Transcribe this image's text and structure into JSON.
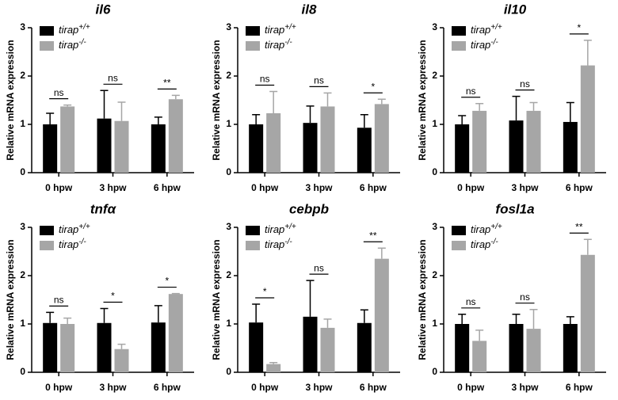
{
  "chart_data": [
    {
      "type": "bar",
      "title": "il6",
      "ylabel": "Relative mRNA expression",
      "categories": [
        "0 hpw",
        "3 hpw",
        "6 hpw"
      ],
      "ylim": [
        0,
        3
      ],
      "yticks": [
        0,
        1,
        2,
        3
      ],
      "series": [
        {
          "name": "tirap+/+",
          "color": "#000000",
          "values": [
            1.0,
            1.12,
            1.0
          ],
          "errors": [
            0.23,
            0.58,
            0.15
          ]
        },
        {
          "name": "tirap-/-",
          "color": "#a6a6a6",
          "values": [
            1.37,
            1.07,
            1.52
          ],
          "errors": [
            0.03,
            0.39,
            0.08
          ]
        }
      ],
      "annotations": [
        "ns",
        "ns",
        "**"
      ]
    },
    {
      "type": "bar",
      "title": "il8",
      "ylabel": "Relative mRNA expression",
      "categories": [
        "0 hpw",
        "3 hpw",
        "6 hpw"
      ],
      "ylim": [
        0,
        3
      ],
      "yticks": [
        0,
        1,
        2,
        3
      ],
      "series": [
        {
          "name": "tirap+/+",
          "color": "#000000",
          "values": [
            1.0,
            1.03,
            0.93
          ],
          "errors": [
            0.2,
            0.35,
            0.27
          ]
        },
        {
          "name": "tirap-/-",
          "color": "#a6a6a6",
          "values": [
            1.23,
            1.37,
            1.42
          ],
          "errors": [
            0.45,
            0.28,
            0.1
          ]
        }
      ],
      "annotations": [
        "ns",
        "ns",
        "*"
      ]
    },
    {
      "type": "bar",
      "title": "il10",
      "ylabel": "Relative mRNA expression",
      "categories": [
        "0 hpw",
        "3 hpw",
        "6 hpw"
      ],
      "ylim": [
        0,
        3
      ],
      "yticks": [
        0,
        1,
        2,
        3
      ],
      "series": [
        {
          "name": "tirap+/+",
          "color": "#000000",
          "values": [
            1.0,
            1.08,
            1.05
          ],
          "errors": [
            0.18,
            0.5,
            0.4
          ]
        },
        {
          "name": "tirap-/-",
          "color": "#a6a6a6",
          "values": [
            1.28,
            1.28,
            2.22
          ],
          "errors": [
            0.15,
            0.17,
            0.52
          ]
        }
      ],
      "annotations": [
        "ns",
        "ns",
        "*"
      ]
    },
    {
      "type": "bar",
      "title": "tnfα",
      "ylabel": "Relative mRNA expression",
      "categories": [
        "0 hpw",
        "3 hpw",
        "6 hpw"
      ],
      "ylim": [
        0,
        3
      ],
      "yticks": [
        0,
        1,
        2,
        3
      ],
      "series": [
        {
          "name": "tirap+/+",
          "color": "#000000",
          "values": [
            1.02,
            1.02,
            1.03
          ],
          "errors": [
            0.22,
            0.3,
            0.35
          ]
        },
        {
          "name": "tirap-/-",
          "color": "#a6a6a6",
          "values": [
            1.0,
            0.48,
            1.62
          ],
          "errors": [
            0.12,
            0.1,
            0.01
          ]
        }
      ],
      "annotations": [
        "ns",
        "*",
        "*"
      ]
    },
    {
      "type": "bar",
      "title": "cebpb",
      "ylabel": "Relative mRNA expression",
      "categories": [
        "0 hpw",
        "3 hpw",
        "6 hpw"
      ],
      "ylim": [
        0,
        3
      ],
      "yticks": [
        0,
        1,
        2,
        3
      ],
      "series": [
        {
          "name": "tirap+/+",
          "color": "#000000",
          "values": [
            1.03,
            1.15,
            1.02
          ],
          "errors": [
            0.38,
            0.75,
            0.27
          ]
        },
        {
          "name": "tirap-/-",
          "color": "#a6a6a6",
          "values": [
            0.17,
            0.92,
            2.35
          ],
          "errors": [
            0.03,
            0.18,
            0.22
          ]
        }
      ],
      "annotations": [
        "*",
        "ns",
        "**"
      ]
    },
    {
      "type": "bar",
      "title": "fosl1a",
      "ylabel": "Relative mRNA expression",
      "categories": [
        "0 hpw",
        "3 hpw",
        "6 hpw"
      ],
      "ylim": [
        0,
        3
      ],
      "yticks": [
        0,
        1,
        2,
        3
      ],
      "series": [
        {
          "name": "tirap+/+",
          "color": "#000000",
          "values": [
            1.0,
            1.0,
            1.0
          ],
          "errors": [
            0.2,
            0.2,
            0.15
          ]
        },
        {
          "name": "tirap-/-",
          "color": "#a6a6a6",
          "values": [
            0.65,
            0.9,
            2.43
          ],
          "errors": [
            0.22,
            0.4,
            0.32
          ]
        }
      ],
      "annotations": [
        "ns",
        "ns",
        "**"
      ]
    }
  ]
}
